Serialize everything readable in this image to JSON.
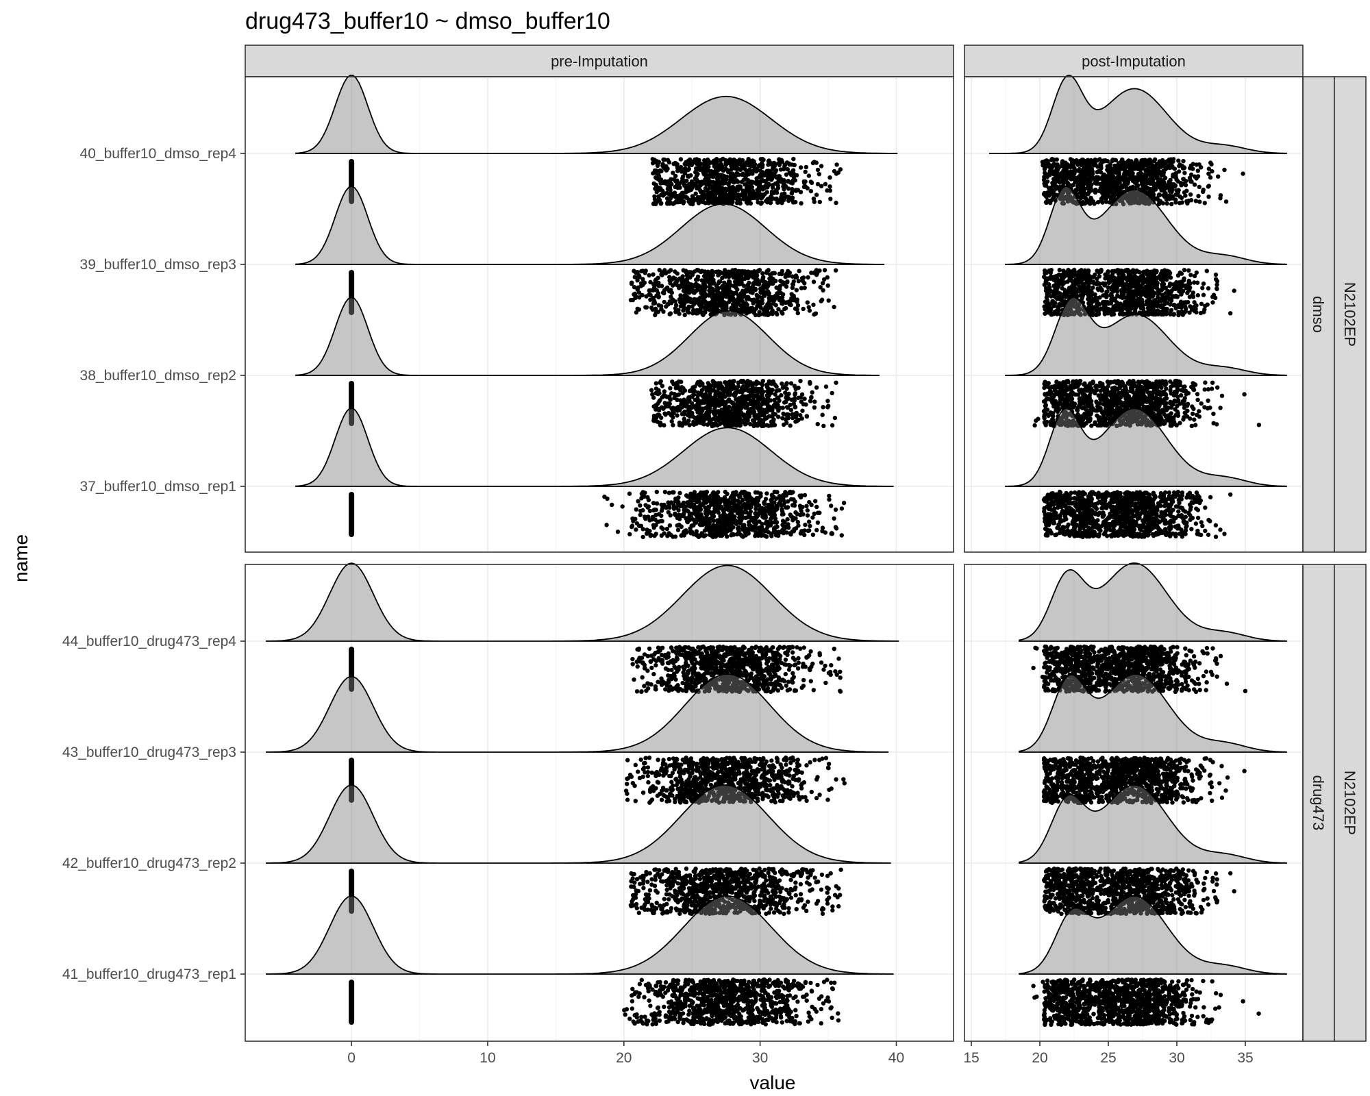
{
  "chart_data": {
    "type": "ridgeline+jitter",
    "title": "drug473_buffer10 ~ dmso_buffer10",
    "xlabel": "value",
    "ylabel": "name",
    "columns": [
      {
        "strip": "pre-Imputation",
        "xlim": [
          -7.8,
          44.2
        ],
        "ticks": [
          0,
          10,
          20,
          30,
          40
        ]
      },
      {
        "strip": "post-Imputation",
        "xlim": [
          14.5,
          39.2
        ],
        "ticks": [
          15,
          20,
          25,
          30,
          35
        ]
      }
    ],
    "row_groups": [
      {
        "strip_inner": "dmso",
        "strip_outer": "N2102EP",
        "samples": [
          "40_buffer10_dmso_rep4",
          "39_buffer10_dmso_rep3",
          "38_buffer10_dmso_rep2",
          "37_buffer10_dmso_rep1"
        ]
      },
      {
        "strip_inner": "drug473",
        "strip_outer": "N2102EP",
        "samples": [
          "44_buffer10_drug473_rep4",
          "43_buffer10_drug473_rep3",
          "42_buffer10_drug473_rep2",
          "41_buffer10_drug473_rep1"
        ]
      }
    ],
    "pre_imputation": {
      "missing_value": 0,
      "missing_peak_sd": [
        1.2,
        1.2,
        1.2,
        1.2,
        1.6,
        1.6,
        1.6,
        1.6
      ],
      "observed_mean": [
        27.5,
        27.3,
        27.7,
        27.6,
        27.6,
        27.6,
        27.4,
        27.6
      ],
      "observed_sd": [
        3.3,
        3.1,
        2.9,
        3.2,
        3.3,
        3.1,
        3.2,
        3.2
      ],
      "observed_range": [
        [
          22.1,
          36.0
        ],
        [
          20.5,
          36.0
        ],
        [
          22.0,
          35.8
        ],
        [
          18.5,
          36.5
        ],
        [
          20.5,
          36.0
        ],
        [
          20.0,
          36.2
        ],
        [
          20.5,
          36.0
        ],
        [
          20.0,
          36.0
        ]
      ]
    },
    "post_imputation": {
      "imputed_mean": [
        22.0,
        21.8,
        22.3,
        21.8,
        22.0,
        22.1,
        22.0,
        22.3
      ],
      "imputed_sd": [
        1.1,
        1.1,
        1.2,
        1.1,
        1.2,
        1.2,
        1.2,
        1.2
      ],
      "observed_mean": [
        26.9,
        26.9,
        27.0,
        26.9,
        26.9,
        27.0,
        26.9,
        26.9
      ],
      "observed_sd": [
        2.4,
        2.4,
        2.4,
        2.4,
        2.4,
        2.4,
        2.4,
        2.4
      ],
      "imputed_fraction": [
        0.33,
        0.3,
        0.36,
        0.29,
        0.28,
        0.3,
        0.27,
        0.25
      ],
      "range": [
        [
          17.3,
          36.0
        ],
        [
          18.5,
          36.2
        ],
        [
          18.5,
          36.0
        ],
        [
          18.5,
          36.0
        ],
        [
          19.5,
          36.0
        ],
        [
          19.5,
          36.0
        ],
        [
          19.5,
          36.0
        ],
        [
          19.5,
          36.0
        ]
      ]
    }
  }
}
